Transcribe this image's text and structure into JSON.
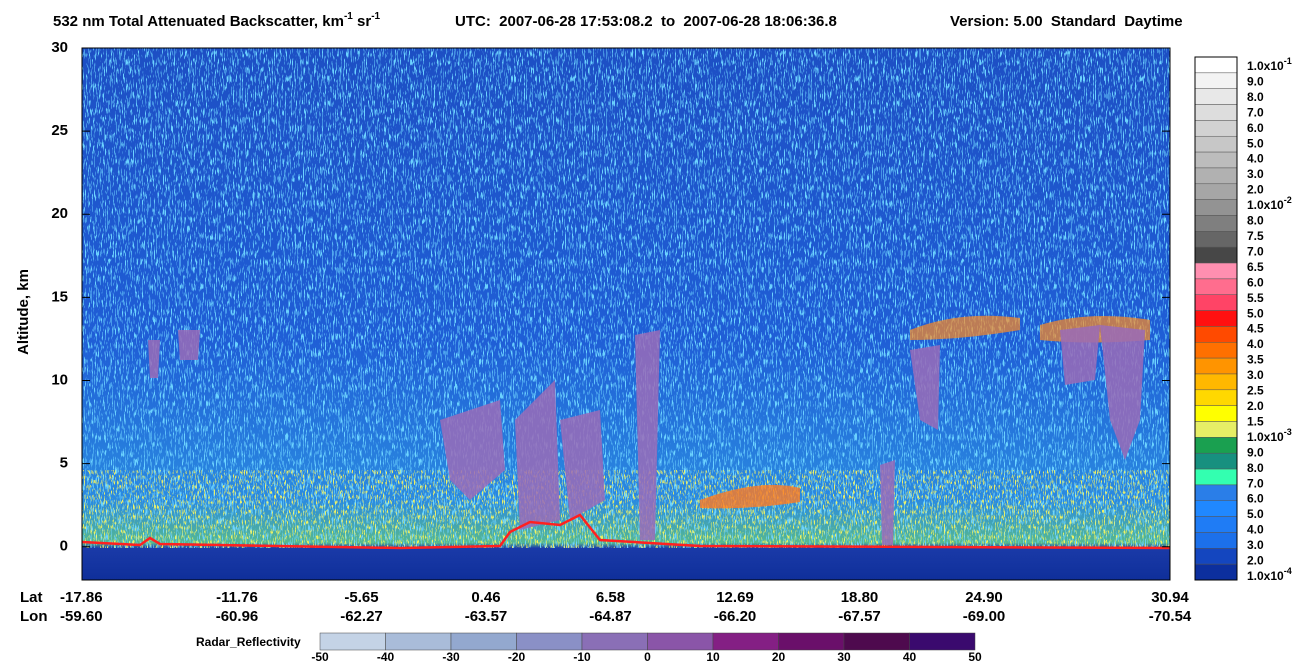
{
  "chart_data": {
    "type": "curtain",
    "title": {
      "parts": [
        "532 nm Total Attenuated Backscatter, km",
        "-1",
        " sr",
        "-1"
      ],
      "utc": "UTC:  2007-06-28 17:53:08.2  to  2007-06-28 18:06:36.8",
      "version": "Version: 5.00  Standard  Daytime"
    },
    "y_label": "Altitude, km",
    "ylim": [
      -2,
      30
    ],
    "yticks": [
      0,
      5,
      10,
      15,
      20,
      25,
      30
    ],
    "x_row_labels": [
      "Lat",
      "Lon"
    ],
    "x_ticks": [
      {
        "lat": "-17.86",
        "lon": "-59.60"
      },
      {
        "lat": "-11.76",
        "lon": "-60.96"
      },
      {
        "lat": "-5.65",
        "lon": "-62.27"
      },
      {
        "lat": "0.46",
        "lon": "-63.57"
      },
      {
        "lat": "6.58",
        "lon": "-64.87"
      },
      {
        "lat": "12.69",
        "lon": "-66.20"
      },
      {
        "lat": "18.80",
        "lon": "-67.57"
      },
      {
        "lat": "24.90",
        "lon": "-69.00"
      },
      {
        "lat": "30.94",
        "lon": "-70.54"
      }
    ],
    "colorbar": {
      "labels": [
        {
          "text": "1.0x10",
          "exp": "-1"
        },
        {
          "text": "9.0"
        },
        {
          "text": "8.0"
        },
        {
          "text": "7.0"
        },
        {
          "text": "6.0"
        },
        {
          "text": "5.0"
        },
        {
          "text": "4.0"
        },
        {
          "text": "3.0"
        },
        {
          "text": "2.0"
        },
        {
          "text": "1.0x10",
          "exp": "-2"
        },
        {
          "text": "8.0"
        },
        {
          "text": "7.5"
        },
        {
          "text": "7.0"
        },
        {
          "text": "6.5"
        },
        {
          "text": "6.0"
        },
        {
          "text": "5.5"
        },
        {
          "text": "5.0"
        },
        {
          "text": "4.5"
        },
        {
          "text": "4.0"
        },
        {
          "text": "3.5"
        },
        {
          "text": "3.0"
        },
        {
          "text": "2.5"
        },
        {
          "text": "2.0"
        },
        {
          "text": "1.5"
        },
        {
          "text": "1.0x10",
          "exp": "-3"
        },
        {
          "text": "9.0"
        },
        {
          "text": "8.0"
        },
        {
          "text": "7.0"
        },
        {
          "text": "6.0"
        },
        {
          "text": "5.0"
        },
        {
          "text": "4.0"
        },
        {
          "text": "3.0"
        },
        {
          "text": "2.0"
        },
        {
          "text": "1.0x10",
          "exp": "-4"
        }
      ],
      "colors": [
        "#ffffff",
        "#f3f3f3",
        "#e8e8e8",
        "#dddddd",
        "#d2d2d2",
        "#c7c7c7",
        "#bcbcbc",
        "#b1b1b1",
        "#a6a6a6",
        "#939393",
        "#7f7f7f",
        "#666666",
        "#474747",
        "#ff8fb0",
        "#ff6d8e",
        "#ff4466",
        "#ff1010",
        "#ff4a00",
        "#ff7000",
        "#ff9400",
        "#ffb800",
        "#ffd800",
        "#ffff00",
        "#e6ee66",
        "#1aa050",
        "#17907f",
        "#33ffb0",
        "#2a7ee8",
        "#2088ff",
        "#1f7cf5",
        "#1c70ea",
        "#1446bf",
        "#0c2f9e"
      ]
    },
    "radar": {
      "label": "Radar_Reflectivity",
      "ticks": [
        -50,
        -40,
        -30,
        -20,
        -10,
        0,
        10,
        20,
        30,
        40,
        50
      ],
      "colors": [
        "#c4d3e6",
        "#a9bcd9",
        "#93a8cf",
        "#8a90c6",
        "#8a6fb6",
        "#8a55a8",
        "#841f84",
        "#6a0f6a",
        "#4e0a4e",
        "#3a0a6e"
      ]
    }
  }
}
